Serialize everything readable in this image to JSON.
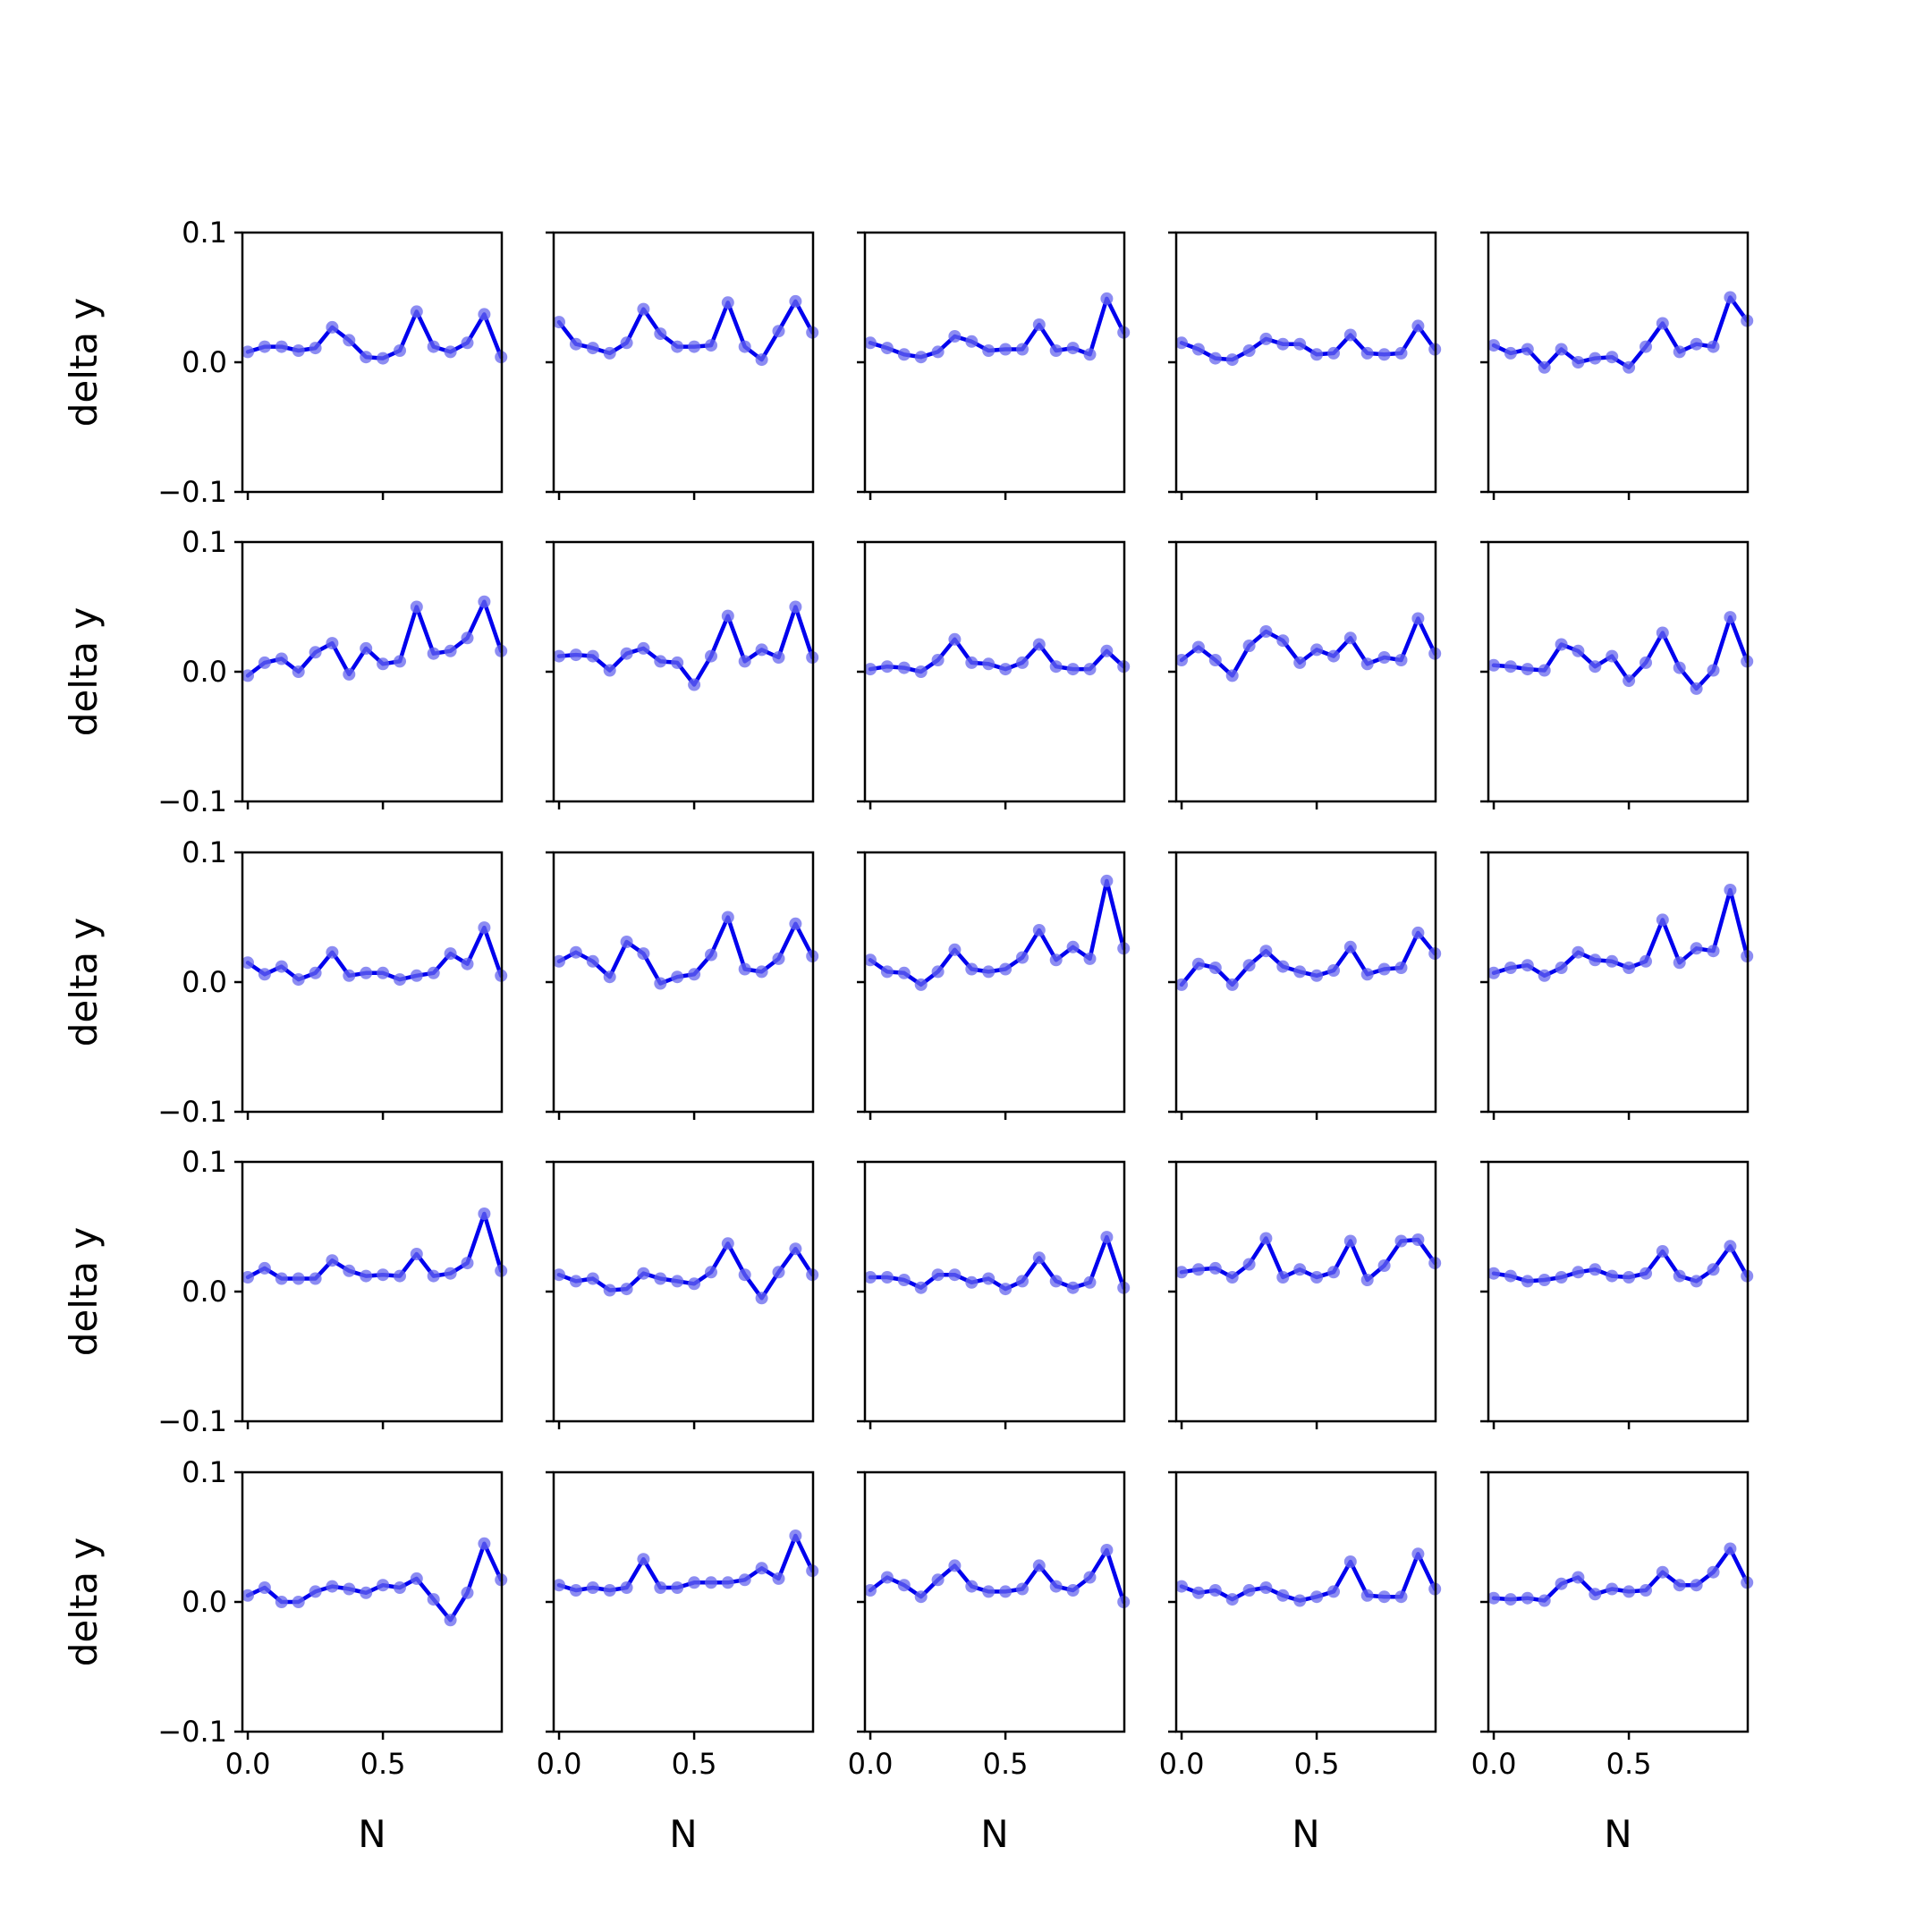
{
  "chart_data": {
    "type": "line",
    "layout": "5x5 grid of small multiples, shared x and y axes",
    "xlabel": "N",
    "ylabel": "delta y",
    "xlim": [
      -0.02,
      0.94
    ],
    "ylim": [
      -0.1,
      0.1
    ],
    "xticks": [
      0.0,
      0.5
    ],
    "xtick_labels": [
      "0.0",
      "0.5"
    ],
    "yticks": [
      -0.1,
      0.0,
      0.1
    ],
    "ytick_labels": [
      "−0.1",
      "0.0",
      "0.1"
    ],
    "series_color": "#0000ee",
    "marker_color": "#6666ee",
    "grid": false,
    "x": [
      0.0,
      0.0625,
      0.125,
      0.1875,
      0.25,
      0.3125,
      0.375,
      0.4375,
      0.5,
      0.5625,
      0.625,
      0.6875,
      0.75,
      0.8125,
      0.875,
      0.9375
    ],
    "panels": [
      {
        "y": [
          0.008,
          0.012,
          0.012,
          0.009,
          0.011,
          0.027,
          0.017,
          0.004,
          0.003,
          0.009,
          0.039,
          0.012,
          0.008,
          0.015,
          0.037,
          0.004
        ]
      },
      {
        "y": [
          0.031,
          0.014,
          0.011,
          0.007,
          0.015,
          0.041,
          0.022,
          0.012,
          0.012,
          0.013,
          0.046,
          0.012,
          0.002,
          0.024,
          0.047,
          0.023
        ]
      },
      {
        "y": [
          0.015,
          0.011,
          0.006,
          0.004,
          0.008,
          0.02,
          0.016,
          0.009,
          0.01,
          0.01,
          0.029,
          0.009,
          0.011,
          0.006,
          0.049,
          0.023
        ]
      },
      {
        "y": [
          0.015,
          0.01,
          0.003,
          0.002,
          0.009,
          0.018,
          0.014,
          0.014,
          0.006,
          0.007,
          0.021,
          0.007,
          0.006,
          0.007,
          0.028,
          0.01
        ]
      },
      {
        "y": [
          0.013,
          0.007,
          0.01,
          -0.004,
          0.01,
          0.0,
          0.003,
          0.004,
          -0.004,
          0.012,
          0.03,
          0.008,
          0.014,
          0.012,
          0.05,
          0.032
        ]
      },
      {
        "y": [
          -0.003,
          0.007,
          0.01,
          0.0,
          0.015,
          0.022,
          -0.002,
          0.018,
          0.006,
          0.008,
          0.05,
          0.014,
          0.016,
          0.026,
          0.054,
          0.016
        ]
      },
      {
        "y": [
          0.012,
          0.013,
          0.012,
          0.001,
          0.014,
          0.018,
          0.008,
          0.007,
          -0.01,
          0.012,
          0.043,
          0.008,
          0.017,
          0.011,
          0.05,
          0.011
        ]
      },
      {
        "y": [
          0.002,
          0.004,
          0.003,
          0.0,
          0.009,
          0.025,
          0.007,
          0.006,
          0.002,
          0.007,
          0.021,
          0.004,
          0.002,
          0.002,
          0.016,
          0.004
        ]
      },
      {
        "y": [
          0.009,
          0.019,
          0.009,
          -0.003,
          0.02,
          0.031,
          0.024,
          0.007,
          0.017,
          0.012,
          0.026,
          0.006,
          0.011,
          0.009,
          0.041,
          0.014
        ]
      },
      {
        "y": [
          0.005,
          0.004,
          0.002,
          0.001,
          0.021,
          0.016,
          0.004,
          0.012,
          -0.007,
          0.007,
          0.03,
          0.003,
          -0.013,
          0.001,
          0.042,
          0.008
        ]
      },
      {
        "y": [
          0.015,
          0.006,
          0.012,
          0.002,
          0.007,
          0.023,
          0.005,
          0.007,
          0.007,
          0.002,
          0.005,
          0.007,
          0.022,
          0.014,
          0.042,
          0.005
        ]
      },
      {
        "y": [
          0.016,
          0.023,
          0.016,
          0.004,
          0.031,
          0.022,
          -0.001,
          0.004,
          0.006,
          0.021,
          0.05,
          0.01,
          0.008,
          0.018,
          0.045,
          0.02
        ]
      },
      {
        "y": [
          0.017,
          0.008,
          0.007,
          -0.002,
          0.008,
          0.025,
          0.01,
          0.008,
          0.01,
          0.019,
          0.04,
          0.017,
          0.027,
          0.018,
          0.078,
          0.026
        ]
      },
      {
        "y": [
          -0.002,
          0.014,
          0.011,
          -0.002,
          0.013,
          0.024,
          0.012,
          0.008,
          0.005,
          0.009,
          0.027,
          0.006,
          0.01,
          0.011,
          0.038,
          0.022
        ]
      },
      {
        "y": [
          0.007,
          0.011,
          0.013,
          0.005,
          0.011,
          0.023,
          0.017,
          0.016,
          0.011,
          0.016,
          0.048,
          0.015,
          0.026,
          0.024,
          0.071,
          0.02
        ]
      },
      {
        "y": [
          0.011,
          0.018,
          0.01,
          0.01,
          0.01,
          0.024,
          0.016,
          0.012,
          0.013,
          0.012,
          0.029,
          0.012,
          0.014,
          0.022,
          0.06,
          0.016
        ]
      },
      {
        "y": [
          0.013,
          0.008,
          0.01,
          0.001,
          0.002,
          0.014,
          0.01,
          0.008,
          0.006,
          0.015,
          0.037,
          0.013,
          -0.005,
          0.015,
          0.033,
          0.013
        ]
      },
      {
        "y": [
          0.011,
          0.011,
          0.009,
          0.003,
          0.013,
          0.013,
          0.007,
          0.01,
          0.002,
          0.008,
          0.026,
          0.008,
          0.003,
          0.007,
          0.042,
          0.003
        ]
      },
      {
        "y": [
          0.015,
          0.017,
          0.018,
          0.011,
          0.021,
          0.041,
          0.011,
          0.017,
          0.011,
          0.015,
          0.039,
          0.009,
          0.02,
          0.039,
          0.04,
          0.022
        ]
      },
      {
        "y": [
          0.014,
          0.012,
          0.008,
          0.009,
          0.011,
          0.015,
          0.017,
          0.012,
          0.011,
          0.014,
          0.031,
          0.012,
          0.008,
          0.017,
          0.035,
          0.012
        ]
      },
      {
        "y": [
          0.005,
          0.011,
          0.0,
          0.0,
          0.008,
          0.012,
          0.01,
          0.007,
          0.013,
          0.011,
          0.018,
          0.002,
          -0.014,
          0.007,
          0.045,
          0.017
        ]
      },
      {
        "y": [
          0.013,
          0.009,
          0.011,
          0.009,
          0.011,
          0.033,
          0.011,
          0.011,
          0.015,
          0.015,
          0.015,
          0.017,
          0.026,
          0.018,
          0.051,
          0.024
        ]
      },
      {
        "y": [
          0.009,
          0.019,
          0.013,
          0.004,
          0.017,
          0.028,
          0.012,
          0.008,
          0.008,
          0.01,
          0.028,
          0.012,
          0.009,
          0.019,
          0.04,
          0.0
        ]
      },
      {
        "y": [
          0.012,
          0.007,
          0.009,
          0.002,
          0.009,
          0.011,
          0.005,
          0.001,
          0.004,
          0.008,
          0.031,
          0.005,
          0.004,
          0.004,
          0.037,
          0.01
        ]
      },
      {
        "y": [
          0.003,
          0.002,
          0.003,
          0.001,
          0.014,
          0.019,
          0.006,
          0.01,
          0.008,
          0.009,
          0.023,
          0.013,
          0.013,
          0.023,
          0.041,
          0.015
        ]
      }
    ]
  }
}
